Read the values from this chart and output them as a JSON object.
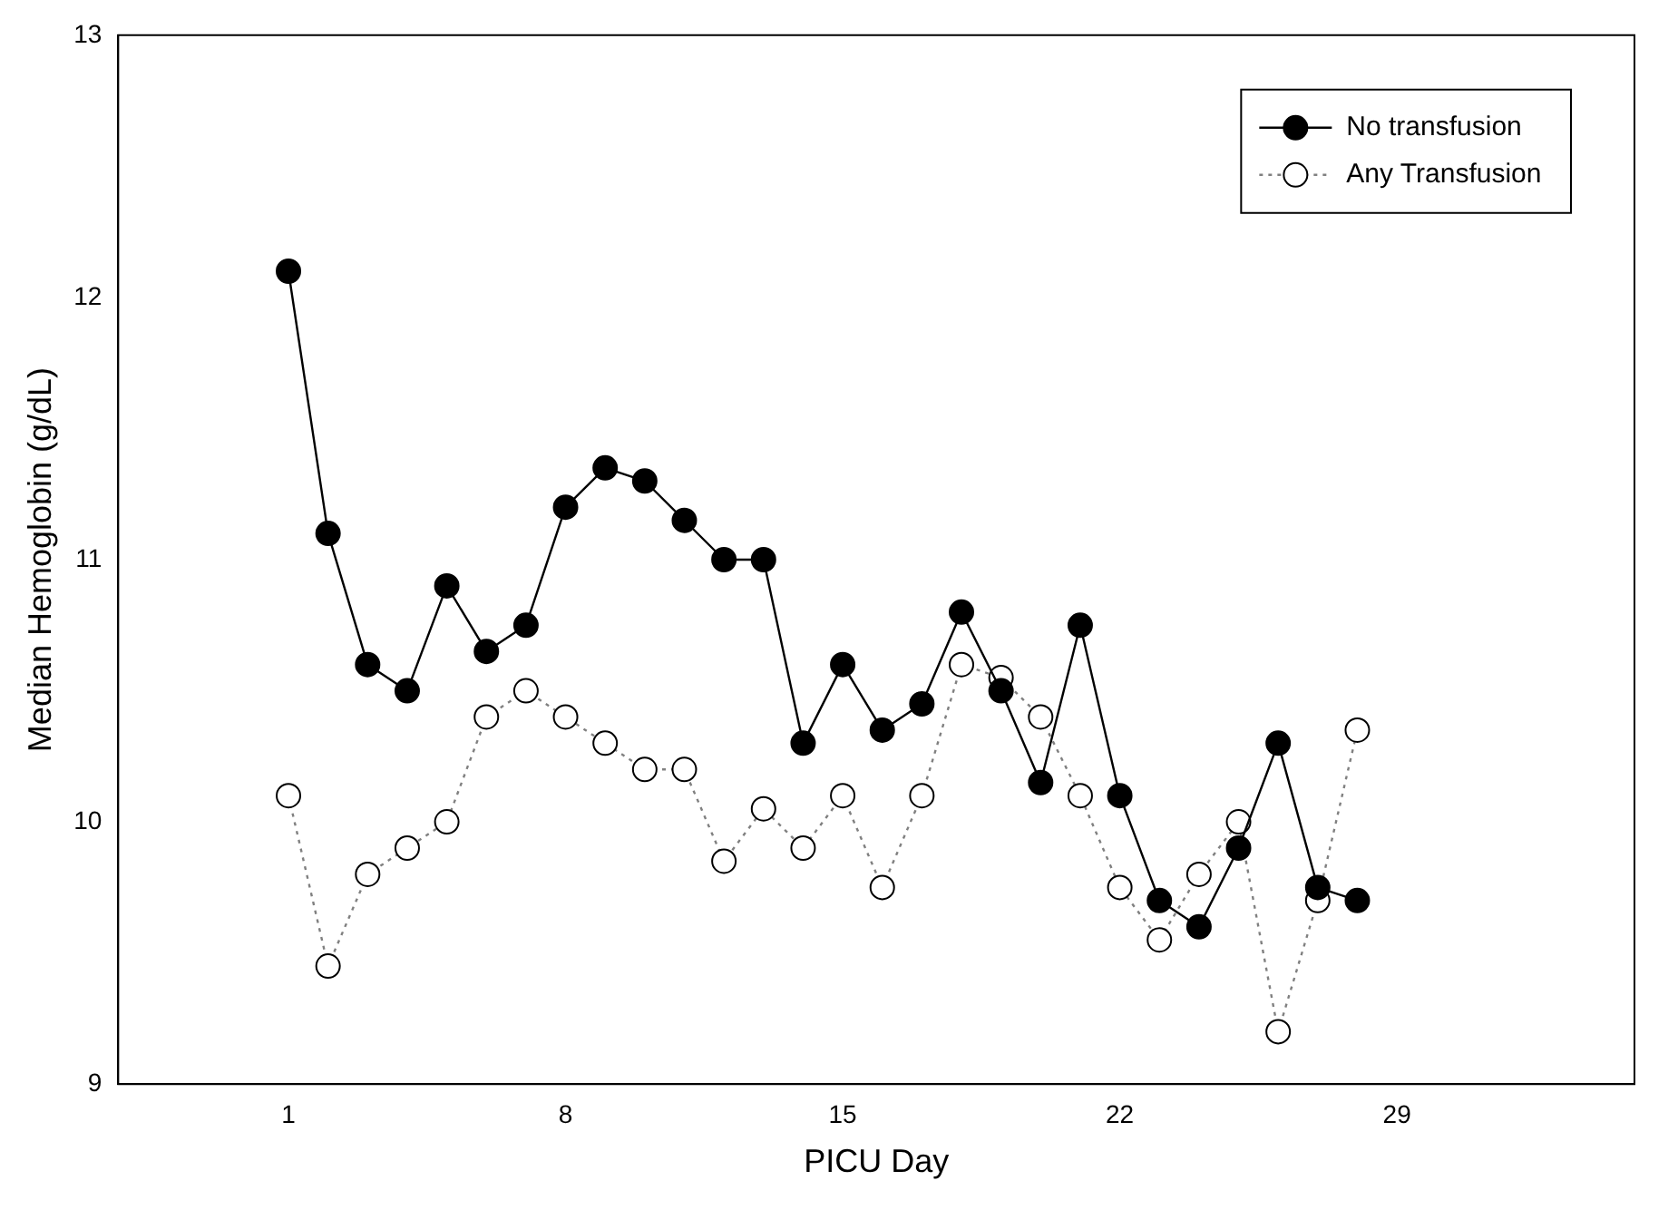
{
  "chart_data": {
    "type": "line",
    "xlabel": "PICU Day",
    "ylabel": "Median Hemoglobin (g/dL)",
    "x": [
      1,
      2,
      3,
      4,
      5,
      6,
      7,
      8,
      9,
      10,
      11,
      12,
      13,
      14,
      15,
      16,
      17,
      18,
      19,
      20,
      21,
      22,
      23,
      24,
      25,
      26,
      27,
      28
    ],
    "series": [
      {
        "name": "No transfusion",
        "color": "#000000",
        "line_style": "solid",
        "values": [
          12.1,
          11.1,
          10.6,
          10.5,
          10.9,
          10.65,
          10.75,
          11.2,
          11.35,
          11.3,
          11.15,
          11.0,
          11.0,
          10.3,
          10.6,
          10.35,
          10.45,
          10.8,
          10.5,
          10.15,
          10.75,
          10.1,
          9.7,
          9.6,
          9.9,
          10.3,
          9.75,
          9.7
        ]
      },
      {
        "name": "Any Transfusion",
        "color": "#808080",
        "line_style": "dotted",
        "values": [
          10.1,
          9.45,
          9.8,
          9.9,
          10.0,
          10.4,
          10.5,
          10.4,
          10.3,
          10.2,
          10.2,
          9.85,
          10.05,
          9.9,
          10.1,
          9.75,
          10.1,
          10.6,
          10.55,
          10.4,
          10.1,
          9.75,
          9.55,
          9.8,
          10.0,
          9.2,
          9.7,
          10.35
        ]
      }
    ],
    "xlim": [
      -3.3,
      35
    ],
    "xticks": [
      1,
      8,
      15,
      22,
      29
    ],
    "ylim": [
      9,
      13
    ],
    "yticks": [
      9,
      10,
      11,
      12,
      13
    ],
    "marker": "circle",
    "legend": "top right",
    "grid": false
  }
}
